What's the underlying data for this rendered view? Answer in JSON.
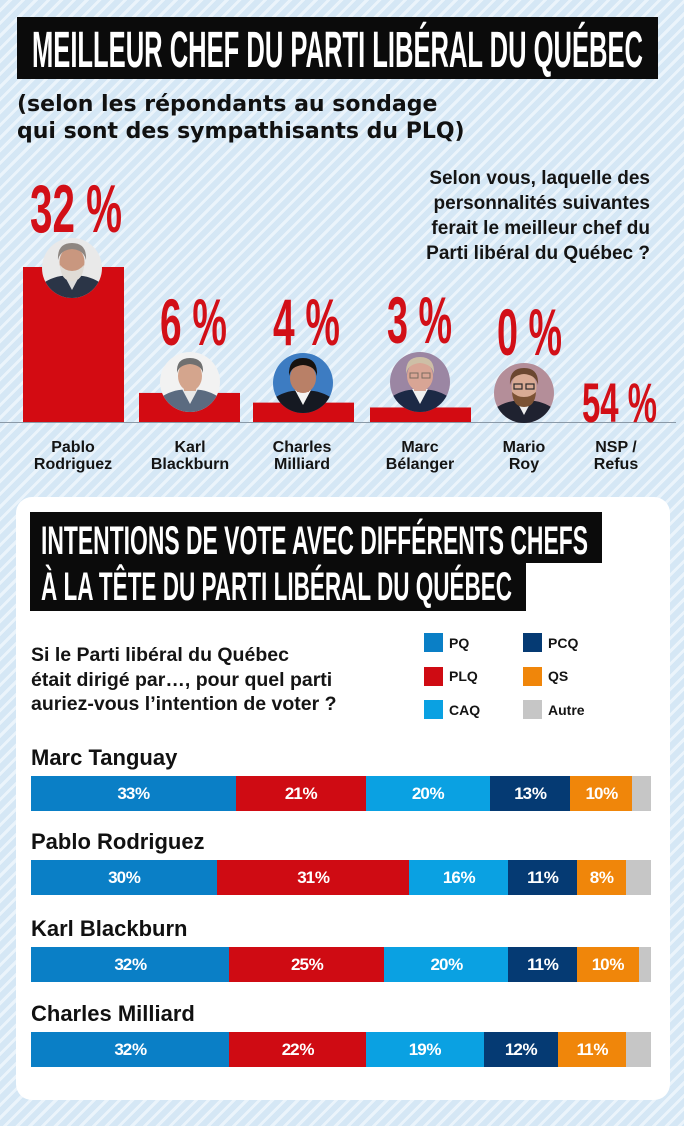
{
  "colors": {
    "bar_red": "#d30b12",
    "title_bg": "#0b0b0b"
  },
  "section1": {
    "title": "MEILLEUR CHEF DU PARTI LIBÉRAL DU QUÉBEC",
    "subtitle_lines": [
      "(selon les répondants au sondage",
      "qui sont des sympathisants du PLQ)"
    ],
    "question_lines": [
      "Selon vous, laquelle des",
      "personnalités suivantes",
      "ferait le meilleur chef du",
      "Parti libéral du Québec ?"
    ]
  },
  "section2": {
    "title_lines": [
      "INTENTIONS DE VOTE AVEC DIFFÉRENTS CHEFS",
      "À LA TÊTE DU PARTI LIBÉRAL DU QUÉBEC"
    ],
    "question_lines": [
      "Si le Parti libéral du Québec",
      "était dirigé par…, pour quel parti",
      "auriez-vous l’intention de voter ?"
    ],
    "legend": [
      {
        "label": "PQ",
        "color": "#0a7fc6"
      },
      {
        "label": "PLQ",
        "color": "#cf0b13"
      },
      {
        "label": "CAQ",
        "color": "#0aa1e2"
      },
      {
        "label": "PCQ",
        "color": "#053a73"
      },
      {
        "label": "QS",
        "color": "#f0860a"
      },
      {
        "label": "Autre",
        "color": "#c6c6c6"
      }
    ]
  },
  "chart_data": [
    {
      "type": "bar",
      "title": "MEILLEUR CHEF DU PARTI LIBÉRAL DU QUÉBEC",
      "subtitle": "(selon les répondants au sondage qui sont des sympathisants du PLQ)",
      "question": "Selon vous, laquelle des personnalités suivantes ferait le meilleur chef du Parti libéral du Québec ?",
      "categories": [
        "Pablo Rodriguez",
        "Karl Blackburn",
        "Charles Milliard",
        "Marc Bélanger",
        "Mario Roy",
        "NSP / Refus"
      ],
      "category_label_lines": [
        [
          "Pablo",
          "Rodriguez"
        ],
        [
          "Karl",
          "Blackburn"
        ],
        [
          "Charles",
          "Milliard"
        ],
        [
          "Marc",
          "Bélanger"
        ],
        [
          "Mario",
          "Roy"
        ],
        [
          "NSP /",
          "Refus"
        ]
      ],
      "values": [
        32,
        6,
        4,
        3,
        0,
        54
      ],
      "value_labels": [
        "32 %",
        "6 %",
        "4 %",
        "3 %",
        "0 %",
        "54 %"
      ],
      "unit": "%",
      "xlabel": "",
      "ylabel": "",
      "grid": false,
      "legend": "none"
    },
    {
      "type": "bar",
      "stacked": true,
      "orientation": "horizontal",
      "title": "INTENTIONS DE VOTE AVEC DIFFÉRENTS CHEFS À LA TÊTE DU PARTI LIBÉRAL DU QUÉBEC",
      "question": "Si le Parti libéral du Québec était dirigé par…, pour quel parti auriez-vous l’intention de voter ?",
      "categories": [
        "Marc Tanguay",
        "Pablo Rodriguez",
        "Karl Blackburn",
        "Charles Milliard"
      ],
      "series": [
        {
          "name": "PQ",
          "color": "#0a7fc6",
          "values": [
            33,
            30,
            32,
            32
          ],
          "labels": [
            "33 %",
            "30 %",
            "32 %",
            "32 %"
          ]
        },
        {
          "name": "PLQ",
          "color": "#cf0b13",
          "values": [
            21,
            31,
            25,
            22
          ],
          "labels": [
            "21 %",
            "31 %",
            "25 %",
            "22 %"
          ]
        },
        {
          "name": "CAQ",
          "color": "#0aa1e2",
          "values": [
            20,
            16,
            20,
            19
          ],
          "labels": [
            "20 %",
            "16 %",
            "20 %",
            "19 %"
          ]
        },
        {
          "name": "PCQ",
          "color": "#053a73",
          "values": [
            13,
            11,
            11,
            12
          ],
          "labels": [
            "13 %",
            "11 %",
            "11 %",
            "12 %"
          ]
        },
        {
          "name": "QS",
          "color": "#f0860a",
          "values": [
            10,
            8,
            10,
            11
          ],
          "labels": [
            "10 %",
            "8 %",
            "10 %",
            "11 %"
          ]
        },
        {
          "name": "Autre",
          "color": "#c6c6c6",
          "values": [
            3,
            4,
            2,
            4
          ],
          "labels": [
            "",
            "",
            "",
            ""
          ]
        }
      ],
      "unit": "%",
      "xlim": [
        0,
        100
      ],
      "grid": false,
      "legend": "top-right"
    }
  ]
}
